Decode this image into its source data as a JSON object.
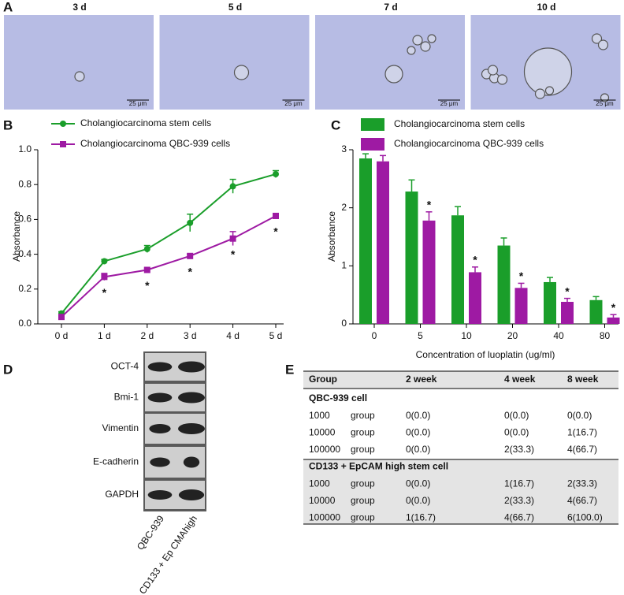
{
  "images": {
    "panel": "A",
    "items": [
      {
        "title": "3 d",
        "scale_bar": "25 μm"
      },
      {
        "title": "5 d",
        "scale_bar": "25 μm"
      },
      {
        "title": "7 d",
        "scale_bar": "25 μm"
      },
      {
        "title": "10 d",
        "scale_bar": "25 μm"
      }
    ]
  },
  "chart_data": [
    {
      "type": "line",
      "panel": "B",
      "y_label": "Absorbance",
      "categories": [
        "0 d",
        "1 d",
        "2 d",
        "3 d",
        "4 d",
        "5 d"
      ],
      "ylim": [
        0,
        1.0
      ],
      "yticks": [
        {
          "value": 0,
          "label": "0.0"
        },
        0.2,
        0.4,
        0.6,
        0.8,
        {
          "value": 1.0,
          "label": "1.0"
        }
      ],
      "series": [
        {
          "name": "Cholangiocarcinoma stem cells",
          "color": "#1a9e2a",
          "marker": "circle",
          "values": [
            0.06,
            0.36,
            0.43,
            0.58,
            0.79,
            0.86
          ],
          "errors": [
            0.01,
            0.01,
            0.02,
            0.05,
            0.04,
            0.02
          ]
        },
        {
          "name": "Cholangiocarcinoma QBC-939 cells",
          "color": "#9e1aa3",
          "marker": "square",
          "values": [
            0.04,
            0.27,
            0.31,
            0.39,
            0.49,
            0.62
          ],
          "errors": [
            0.01,
            0.02,
            0.01,
            0.01,
            0.04,
            0.01
          ],
          "significance": [
            null,
            "*",
            "*",
            "*",
            "*",
            "*"
          ]
        }
      ]
    },
    {
      "type": "bar",
      "panel": "C",
      "y_label": "Absorbance",
      "x_label": "Concentration of luoplatin (ug/ml)",
      "categories": [
        "0",
        "5",
        "10",
        "20",
        "40",
        "80"
      ],
      "ylim": [
        0,
        3
      ],
      "yticks": [
        0,
        1,
        2,
        3
      ],
      "series": [
        {
          "name": "Cholangiocarcinoma stem cells",
          "color": "#1a9e2a",
          "values": [
            2.85,
            2.28,
            1.87,
            1.35,
            0.72,
            0.41
          ],
          "errors": [
            0.08,
            0.2,
            0.15,
            0.13,
            0.08,
            0.06
          ]
        },
        {
          "name": "Cholangiocarcinoma QBC-939 cells",
          "color": "#9e1aa3",
          "values": [
            2.8,
            1.78,
            0.89,
            0.62,
            0.38,
            0.11
          ],
          "errors": [
            0.1,
            0.15,
            0.09,
            0.08,
            0.06,
            0.05
          ],
          "significance": [
            null,
            "*",
            "*",
            "*",
            "*",
            "*"
          ]
        }
      ]
    }
  ],
  "blot": {
    "panel": "D",
    "rows": [
      "OCT-4",
      "Bmi-1",
      "Vimentin",
      "E-cadherin",
      "GAPDH"
    ],
    "lanes": [
      "QBC-939",
      "CD133 + Ep CMAhigh"
    ]
  },
  "table": {
    "panel": "E",
    "header": [
      "Group",
      "2 week",
      "4 week",
      "8 week"
    ],
    "sections": [
      {
        "title": "QBC-939 cell",
        "rows": [
          [
            "1000",
            "group",
            "0(0.0)",
            "0(0.0)",
            "0(0.0)"
          ],
          [
            "10000",
            "group",
            "0(0.0)",
            "0(0.0)",
            "1(16.7)"
          ],
          [
            "100000",
            "group",
            "0(0.0)",
            "2(33.3)",
            "4(66.7)"
          ]
        ]
      },
      {
        "title": "CD133 + EpCAM high stem cell",
        "rows": [
          [
            "1000",
            "group",
            "0(0.0)",
            "1(16.7)",
            "2(33.3)"
          ],
          [
            "10000",
            "group",
            "0(0.0)",
            "2(33.3)",
            "4(66.7)"
          ],
          [
            "100000",
            "group",
            "1(16.7)",
            "4(66.7)",
            "6(100.0)"
          ]
        ]
      }
    ]
  }
}
